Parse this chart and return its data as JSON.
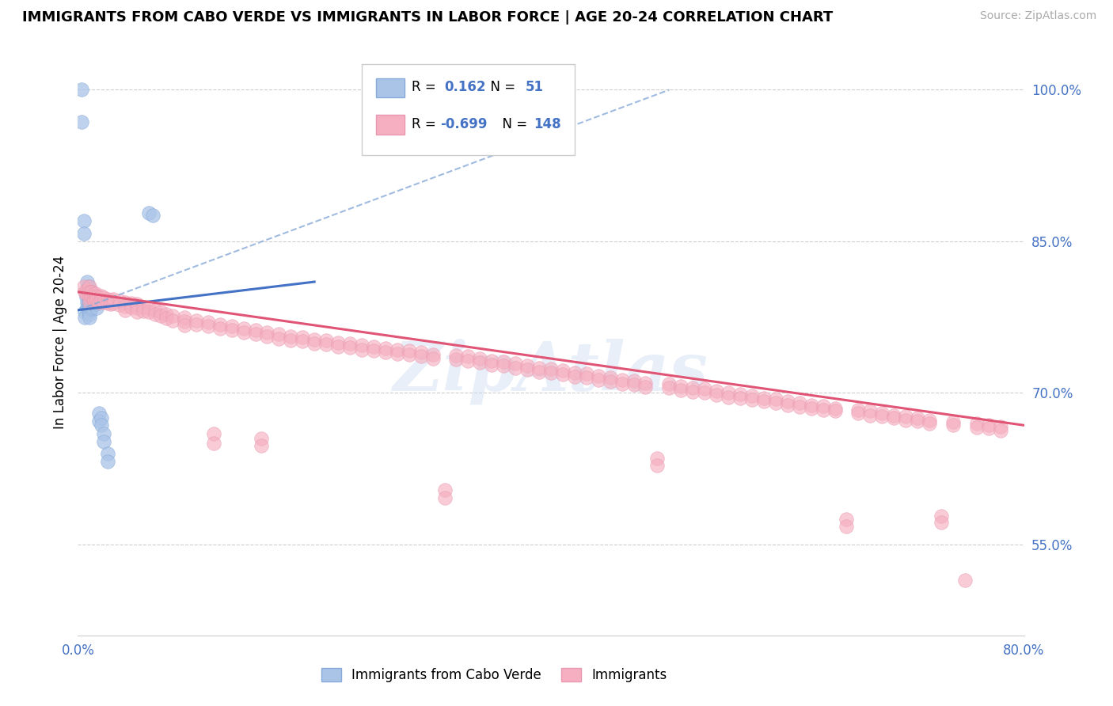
{
  "title": "IMMIGRANTS FROM CABO VERDE VS IMMIGRANTS IN LABOR FORCE | AGE 20-24 CORRELATION CHART",
  "source": "Source: ZipAtlas.com",
  "ylabel": "In Labor Force | Age 20-24",
  "x_min": 0.0,
  "x_max": 0.8,
  "y_min": 0.46,
  "y_max": 1.04,
  "y_ticks": [
    0.55,
    0.7,
    0.85,
    1.0
  ],
  "y_tick_labels": [
    "55.0%",
    "70.0%",
    "85.0%",
    "100.0%"
  ],
  "blue_color": "#4472c4",
  "pink_color": "#e05575",
  "blue_scatter_color": "#aac4e8",
  "pink_scatter_color": "#f5afc0",
  "watermark": "ZipAtlas",
  "blue_points": [
    [
      0.003,
      1.0
    ],
    [
      0.003,
      0.968
    ],
    [
      0.005,
      0.87
    ],
    [
      0.005,
      0.858
    ],
    [
      0.006,
      0.78
    ],
    [
      0.006,
      0.775
    ],
    [
      0.007,
      0.8
    ],
    [
      0.007,
      0.795
    ],
    [
      0.008,
      0.81
    ],
    [
      0.008,
      0.8
    ],
    [
      0.008,
      0.79
    ],
    [
      0.008,
      0.785
    ],
    [
      0.009,
      0.805
    ],
    [
      0.009,
      0.8
    ],
    [
      0.009,
      0.795
    ],
    [
      0.009,
      0.79
    ],
    [
      0.009,
      0.785
    ],
    [
      0.009,
      0.78
    ],
    [
      0.01,
      0.8
    ],
    [
      0.01,
      0.795
    ],
    [
      0.01,
      0.792
    ],
    [
      0.01,
      0.788
    ],
    [
      0.01,
      0.785
    ],
    [
      0.01,
      0.782
    ],
    [
      0.01,
      0.778
    ],
    [
      0.01,
      0.775
    ],
    [
      0.011,
      0.798
    ],
    [
      0.011,
      0.793
    ],
    [
      0.011,
      0.788
    ],
    [
      0.011,
      0.783
    ],
    [
      0.012,
      0.8
    ],
    [
      0.012,
      0.795
    ],
    [
      0.012,
      0.79
    ],
    [
      0.012,
      0.785
    ],
    [
      0.013,
      0.795
    ],
    [
      0.013,
      0.79
    ],
    [
      0.014,
      0.792
    ],
    [
      0.014,
      0.788
    ],
    [
      0.015,
      0.795
    ],
    [
      0.015,
      0.79
    ],
    [
      0.016,
      0.788
    ],
    [
      0.016,
      0.784
    ],
    [
      0.018,
      0.68
    ],
    [
      0.018,
      0.672
    ],
    [
      0.02,
      0.675
    ],
    [
      0.02,
      0.668
    ],
    [
      0.022,
      0.66
    ],
    [
      0.022,
      0.652
    ],
    [
      0.025,
      0.64
    ],
    [
      0.025,
      0.632
    ],
    [
      0.06,
      0.878
    ],
    [
      0.063,
      0.876
    ]
  ],
  "pink_points": [
    [
      0.005,
      0.805
    ],
    [
      0.006,
      0.8
    ],
    [
      0.007,
      0.798
    ],
    [
      0.008,
      0.802
    ],
    [
      0.009,
      0.8
    ],
    [
      0.01,
      0.805
    ],
    [
      0.01,
      0.8
    ],
    [
      0.01,
      0.795
    ],
    [
      0.01,
      0.79
    ],
    [
      0.011,
      0.8
    ],
    [
      0.011,
      0.796
    ],
    [
      0.012,
      0.8
    ],
    [
      0.012,
      0.795
    ],
    [
      0.013,
      0.798
    ],
    [
      0.013,
      0.793
    ],
    [
      0.014,
      0.796
    ],
    [
      0.014,
      0.792
    ],
    [
      0.015,
      0.798
    ],
    [
      0.015,
      0.794
    ],
    [
      0.016,
      0.796
    ],
    [
      0.016,
      0.792
    ],
    [
      0.018,
      0.794
    ],
    [
      0.018,
      0.79
    ],
    [
      0.02,
      0.796
    ],
    [
      0.02,
      0.792
    ],
    [
      0.022,
      0.794
    ],
    [
      0.022,
      0.79
    ],
    [
      0.025,
      0.793
    ],
    [
      0.025,
      0.789
    ],
    [
      0.028,
      0.792
    ],
    [
      0.028,
      0.788
    ],
    [
      0.03,
      0.793
    ],
    [
      0.03,
      0.789
    ],
    [
      0.035,
      0.791
    ],
    [
      0.035,
      0.787
    ],
    [
      0.04,
      0.79
    ],
    [
      0.04,
      0.786
    ],
    [
      0.04,
      0.782
    ],
    [
      0.045,
      0.789
    ],
    [
      0.045,
      0.785
    ],
    [
      0.05,
      0.788
    ],
    [
      0.05,
      0.784
    ],
    [
      0.05,
      0.78
    ],
    [
      0.055,
      0.785
    ],
    [
      0.055,
      0.781
    ],
    [
      0.06,
      0.784
    ],
    [
      0.06,
      0.78
    ],
    [
      0.065,
      0.782
    ],
    [
      0.065,
      0.778
    ],
    [
      0.07,
      0.78
    ],
    [
      0.07,
      0.776
    ],
    [
      0.075,
      0.778
    ],
    [
      0.075,
      0.774
    ],
    [
      0.08,
      0.776
    ],
    [
      0.08,
      0.772
    ],
    [
      0.09,
      0.775
    ],
    [
      0.09,
      0.771
    ],
    [
      0.09,
      0.767
    ],
    [
      0.1,
      0.772
    ],
    [
      0.1,
      0.768
    ],
    [
      0.11,
      0.77
    ],
    [
      0.11,
      0.766
    ],
    [
      0.115,
      0.66
    ],
    [
      0.115,
      0.65
    ],
    [
      0.12,
      0.768
    ],
    [
      0.12,
      0.764
    ],
    [
      0.13,
      0.766
    ],
    [
      0.13,
      0.762
    ],
    [
      0.14,
      0.764
    ],
    [
      0.14,
      0.76
    ],
    [
      0.15,
      0.762
    ],
    [
      0.15,
      0.758
    ],
    [
      0.155,
      0.655
    ],
    [
      0.155,
      0.648
    ],
    [
      0.16,
      0.76
    ],
    [
      0.16,
      0.756
    ],
    [
      0.17,
      0.758
    ],
    [
      0.17,
      0.754
    ],
    [
      0.18,
      0.756
    ],
    [
      0.18,
      0.752
    ],
    [
      0.19,
      0.755
    ],
    [
      0.19,
      0.751
    ],
    [
      0.2,
      0.753
    ],
    [
      0.2,
      0.749
    ],
    [
      0.21,
      0.752
    ],
    [
      0.21,
      0.748
    ],
    [
      0.22,
      0.75
    ],
    [
      0.22,
      0.746
    ],
    [
      0.23,
      0.749
    ],
    [
      0.23,
      0.745
    ],
    [
      0.24,
      0.747
    ],
    [
      0.24,
      0.743
    ],
    [
      0.25,
      0.746
    ],
    [
      0.25,
      0.742
    ],
    [
      0.26,
      0.744
    ],
    [
      0.26,
      0.74
    ],
    [
      0.27,
      0.743
    ],
    [
      0.27,
      0.739
    ],
    [
      0.28,
      0.742
    ],
    [
      0.28,
      0.738
    ],
    [
      0.29,
      0.74
    ],
    [
      0.29,
      0.736
    ],
    [
      0.3,
      0.738
    ],
    [
      0.3,
      0.734
    ],
    [
      0.31,
      0.604
    ],
    [
      0.31,
      0.596
    ],
    [
      0.32,
      0.737
    ],
    [
      0.32,
      0.733
    ],
    [
      0.33,
      0.736
    ],
    [
      0.33,
      0.732
    ],
    [
      0.34,
      0.734
    ],
    [
      0.34,
      0.73
    ],
    [
      0.35,
      0.732
    ],
    [
      0.35,
      0.728
    ],
    [
      0.36,
      0.731
    ],
    [
      0.36,
      0.727
    ],
    [
      0.37,
      0.729
    ],
    [
      0.37,
      0.725
    ],
    [
      0.38,
      0.727
    ],
    [
      0.38,
      0.723
    ],
    [
      0.39,
      0.725
    ],
    [
      0.39,
      0.721
    ],
    [
      0.4,
      0.724
    ],
    [
      0.4,
      0.72
    ],
    [
      0.41,
      0.722
    ],
    [
      0.41,
      0.718
    ],
    [
      0.42,
      0.72
    ],
    [
      0.42,
      0.716
    ],
    [
      0.43,
      0.719
    ],
    [
      0.43,
      0.715
    ],
    [
      0.44,
      0.717
    ],
    [
      0.44,
      0.713
    ],
    [
      0.45,
      0.715
    ],
    [
      0.45,
      0.711
    ],
    [
      0.46,
      0.713
    ],
    [
      0.46,
      0.709
    ],
    [
      0.47,
      0.712
    ],
    [
      0.47,
      0.708
    ],
    [
      0.48,
      0.71
    ],
    [
      0.48,
      0.706
    ],
    [
      0.49,
      0.635
    ],
    [
      0.49,
      0.628
    ],
    [
      0.5,
      0.709
    ],
    [
      0.5,
      0.705
    ],
    [
      0.51,
      0.707
    ],
    [
      0.51,
      0.703
    ],
    [
      0.52,
      0.705
    ],
    [
      0.52,
      0.701
    ],
    [
      0.53,
      0.704
    ],
    [
      0.53,
      0.7
    ],
    [
      0.54,
      0.702
    ],
    [
      0.54,
      0.698
    ],
    [
      0.55,
      0.7
    ],
    [
      0.55,
      0.696
    ],
    [
      0.56,
      0.699
    ],
    [
      0.56,
      0.695
    ],
    [
      0.57,
      0.697
    ],
    [
      0.57,
      0.693
    ],
    [
      0.58,
      0.695
    ],
    [
      0.58,
      0.692
    ],
    [
      0.59,
      0.694
    ],
    [
      0.59,
      0.69
    ],
    [
      0.6,
      0.692
    ],
    [
      0.6,
      0.688
    ],
    [
      0.61,
      0.69
    ],
    [
      0.61,
      0.686
    ],
    [
      0.62,
      0.688
    ],
    [
      0.62,
      0.685
    ],
    [
      0.63,
      0.687
    ],
    [
      0.63,
      0.683
    ],
    [
      0.64,
      0.685
    ],
    [
      0.64,
      0.682
    ],
    [
      0.65,
      0.575
    ],
    [
      0.65,
      0.568
    ],
    [
      0.66,
      0.683
    ],
    [
      0.66,
      0.68
    ],
    [
      0.67,
      0.682
    ],
    [
      0.67,
      0.678
    ],
    [
      0.68,
      0.68
    ],
    [
      0.68,
      0.677
    ],
    [
      0.69,
      0.678
    ],
    [
      0.69,
      0.675
    ],
    [
      0.7,
      0.677
    ],
    [
      0.7,
      0.673
    ],
    [
      0.71,
      0.675
    ],
    [
      0.71,
      0.672
    ],
    [
      0.72,
      0.673
    ],
    [
      0.72,
      0.67
    ],
    [
      0.73,
      0.578
    ],
    [
      0.73,
      0.572
    ],
    [
      0.74,
      0.671
    ],
    [
      0.74,
      0.668
    ],
    [
      0.75,
      0.515
    ],
    [
      0.76,
      0.67
    ],
    [
      0.76,
      0.666
    ],
    [
      0.77,
      0.668
    ],
    [
      0.77,
      0.665
    ],
    [
      0.78,
      0.667
    ],
    [
      0.78,
      0.663
    ]
  ],
  "blue_trend": [
    0.0,
    0.2,
    0.782,
    0.81
  ],
  "blue_dashed": [
    0.0,
    0.5,
    0.782,
    1.0
  ],
  "pink_trend": [
    0.0,
    0.8,
    0.8,
    0.668
  ]
}
